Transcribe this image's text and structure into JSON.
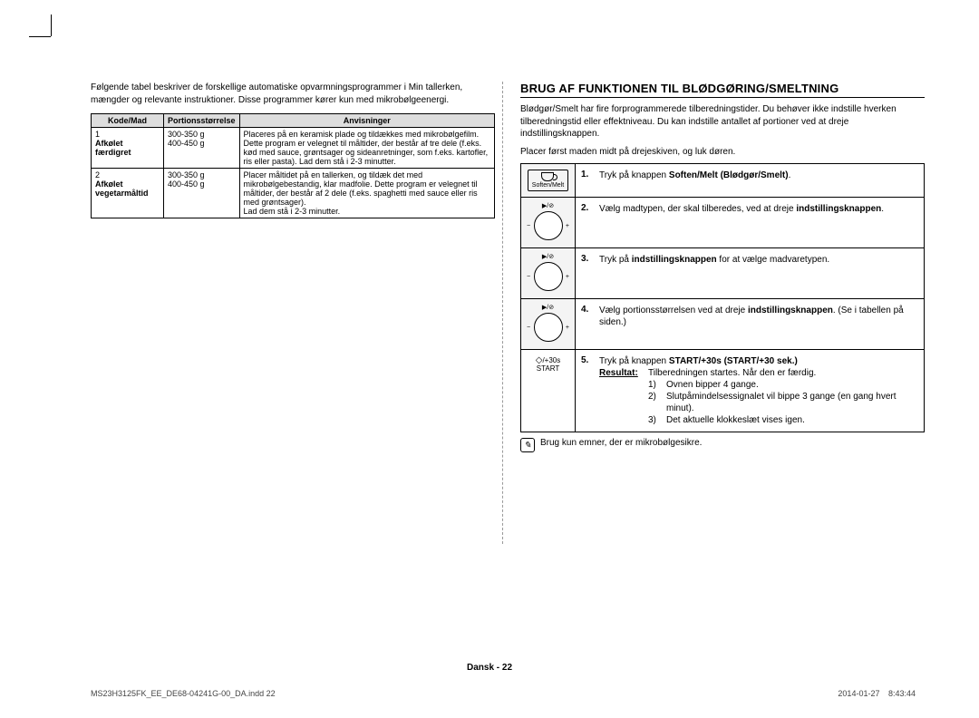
{
  "left": {
    "intro": "Følgende tabel beskriver de forskellige automatiske opvarmningsprogrammer i Min tallerken, mængder og relevante instruktioner. Disse programmer kører kun med mikrobølgeenergi.",
    "headers": {
      "code": "Kode/Mad",
      "portion": "Portionsstørrelse",
      "instr": "Anvisninger"
    },
    "rows": [
      {
        "code_num": "1",
        "code_name": "Afkølet færdigret",
        "portion": "300-350 g\n400-450 g",
        "instr": "Placeres på en keramisk plade og tildækkes med mikrobølgefilm. Dette program er velegnet til måltider, der består af tre dele (f.eks. kød med sauce, grøntsager og sideanretninger, som f.eks. kartofler, ris eller pasta). Lad dem stå i 2-3 minutter."
      },
      {
        "code_num": "2",
        "code_name": "Afkølet vegetarmåltid",
        "portion": "300-350 g\n400-450 g",
        "instr": "Placer måltidet på en tallerken, og tildæk det med mikrobølgebestandig, klar madfolie. Dette program er velegnet til måltider, der består af 2 dele (f.eks. spaghetti med sauce eller ris med grøntsager).\nLad dem stå i 2-3 minutter."
      }
    ]
  },
  "right": {
    "heading": "BRUG AF FUNKTIONEN TIL BLØDGØRING/SMELTNING",
    "p1": "Blødgør/Smelt har fire forprogrammerede tilberedningstider. Du behøver ikke indstille hverken tilberedningstid eller effektniveau. Du kan indstille antallet af portioner ved at dreje indstillingsknappen.",
    "p2": "Placer først maden midt på drejeskiven, og luk døren.",
    "icon_labels": {
      "soften": "Soften/Melt",
      "start_top": "/+30s",
      "start_bot": "START"
    },
    "steps": [
      {
        "n": "1.",
        "pre": "Tryk på knappen ",
        "b": "Soften/Melt (Blødgør/Smelt)",
        "post": "."
      },
      {
        "n": "2.",
        "pre": "Vælg madtypen, der skal tilberedes, ved at dreje ",
        "b": "indstillingsknappen",
        "post": "."
      },
      {
        "n": "3.",
        "pre": "Tryk på ",
        "b": "indstillingsknappen",
        "post": " for at vælge madvaretypen."
      },
      {
        "n": "4.",
        "pre": "Vælg portionsstørrelsen ved at dreje ",
        "b": "indstillingsknappen",
        "post": ". (Se i tabellen på siden.)"
      }
    ],
    "step5": {
      "n": "5.",
      "line1_pre": "Tryk på knappen ",
      "line1_b": "START/+30s (START/+30 sek.)",
      "res_label": "Resultat:",
      "res_text": "Tilberedningen startes. Når den er færdig.",
      "items": [
        {
          "k": "1)",
          "v": "Ovnen bipper 4 gange."
        },
        {
          "k": "2)",
          "v": "Slutpåmindelsessignalet vil bippe 3 gange (en gang hvert minut)."
        },
        {
          "k": "3)",
          "v": "Det aktuelle klokkeslæt vises igen."
        }
      ]
    },
    "note": "Brug kun emner, der er mikrobølgesikre."
  },
  "footer": {
    "center_a": "Dansk - ",
    "center_b": "22",
    "left": "MS23H3125FK_EE_DE68-04241G-00_DA.indd   22",
    "right": "2014-01-27     8:43:44"
  }
}
